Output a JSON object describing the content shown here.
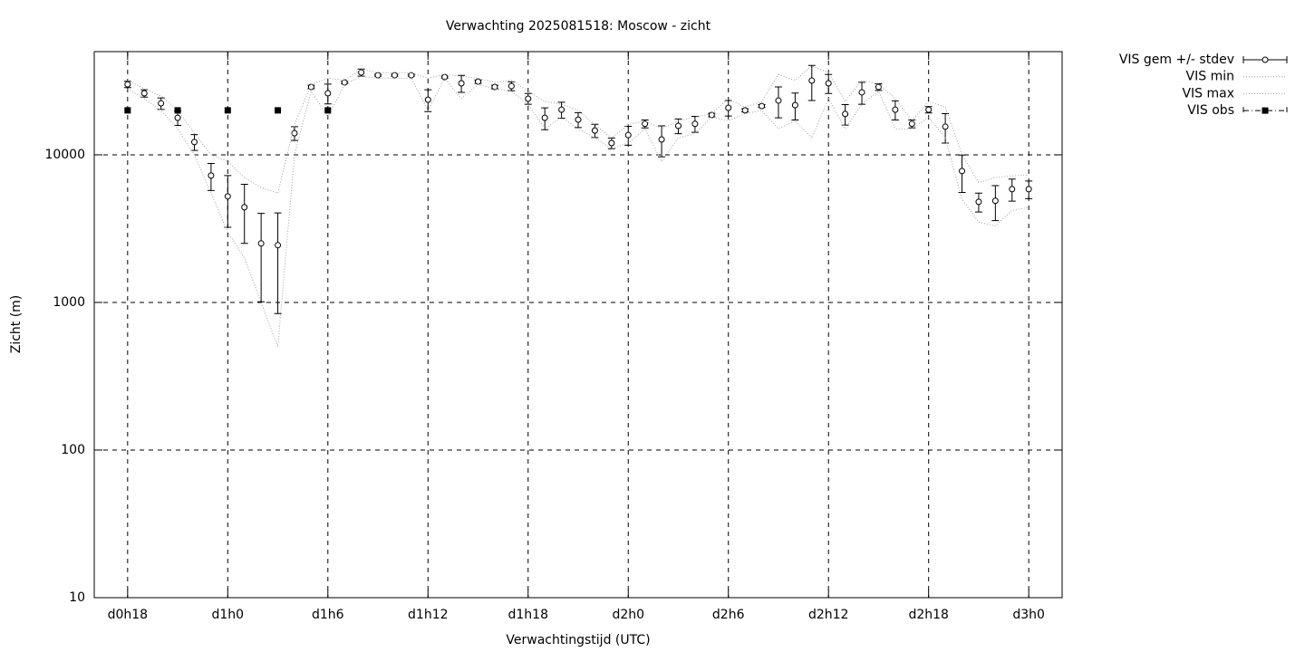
{
  "chart_data": {
    "type": "line",
    "title": "Verwachting 2025081518: Moscow - zicht",
    "x_label": "Verwachtingstijd (UTC)",
    "y_label": "Zicht (m)",
    "log_y": true,
    "grid": true,
    "legend": "top-right-outside",
    "xlim": [
      16,
      74
    ],
    "xticks": [
      {
        "value": 18,
        "label": "d0h18"
      },
      {
        "value": 24,
        "label": "d1h0"
      },
      {
        "value": 30,
        "label": "d1h6"
      },
      {
        "value": 36,
        "label": "d1h12"
      },
      {
        "value": 42,
        "label": "d1h18"
      },
      {
        "value": 48,
        "label": "d2h0"
      },
      {
        "value": 54,
        "label": "d2h6"
      },
      {
        "value": 60,
        "label": "d2h12"
      },
      {
        "value": 66,
        "label": "d2h18"
      },
      {
        "value": 72,
        "label": "d3h0"
      }
    ],
    "ylim": [
      10,
      50000
    ],
    "yticks": [
      10,
      100,
      1000,
      10000
    ],
    "x": [
      18,
      19,
      20,
      21,
      22,
      23,
      24,
      25,
      26,
      27,
      28,
      29,
      30,
      31,
      32,
      33,
      34,
      35,
      36,
      37,
      38,
      39,
      40,
      41,
      42,
      43,
      44,
      45,
      46,
      47,
      48,
      49,
      50,
      51,
      52,
      53,
      54,
      55,
      56,
      57,
      58,
      59,
      60,
      61,
      62,
      63,
      64,
      65,
      66,
      67,
      68,
      69,
      70,
      71,
      72
    ],
    "series": [
      {
        "name": "VIS gem +/- stdev",
        "color": "#000000",
        "style": "errorbar",
        "values": [
          30000,
          26100,
          22300,
          17800,
          12200,
          7230,
          5230,
          4410,
          2510,
          2440,
          14000,
          28800,
          26100,
          30900,
          36100,
          34600,
          34600,
          34600,
          23600,
          33600,
          30500,
          31300,
          28800,
          29200,
          24000,
          17800,
          20200,
          17300,
          14600,
          12000,
          13600,
          16200,
          12700,
          15700,
          16200,
          18600,
          20800,
          20000,
          21400,
          23300,
          21700,
          31800,
          30500,
          18900,
          26500,
          28800,
          20200,
          16200,
          20200,
          15500,
          7760,
          4800,
          4880,
          5850,
          5850
        ],
        "errors": [
          1500,
          1500,
          2000,
          2000,
          1500,
          1500,
          2000,
          1900,
          1500,
          1600,
          1500,
          800,
          4000,
          500,
          2000,
          500,
          500,
          500,
          4000,
          500,
          4000,
          800,
          800,
          2000,
          2000,
          3000,
          2500,
          2000,
          1500,
          1000,
          2000,
          1000,
          3000,
          1800,
          2000,
          500,
          2500,
          500,
          500,
          5500,
          4500,
          8500,
          4500,
          3000,
          4500,
          1500,
          3000,
          1000,
          1000,
          3500,
          2200,
          700,
          1300,
          1000,
          800
        ]
      },
      {
        "name": "VIS min",
        "color": "#a0a0a0",
        "style": "dotted",
        "values": [
          28000,
          24000,
          20000,
          15000,
          10000,
          5500,
          3000,
          2000,
          1000,
          500,
          10000,
          27000,
          18000,
          30000,
          34000,
          33000,
          33000,
          33000,
          20000,
          33000,
          24000,
          30000,
          28000,
          27000,
          22000,
          15000,
          18000,
          15000,
          13000,
          11000,
          12000,
          15000,
          9000,
          13000,
          14000,
          18000,
          17000,
          19000,
          20000,
          15000,
          17000,
          13000,
          24000,
          15000,
          22000,
          27000,
          15000,
          15000,
          18000,
          13000,
          5000,
          3500,
          3300,
          4200,
          4400
        ]
      },
      {
        "name": "VIS max",
        "color": "#a0a0a0",
        "style": "dotted",
        "values": [
          32000,
          28000,
          25000,
          20000,
          14000,
          10000,
          9000,
          7000,
          6000,
          5500,
          16000,
          30000,
          33000,
          32000,
          38000,
          36000,
          36000,
          36000,
          33000,
          35000,
          34000,
          33000,
          31000,
          32000,
          27000,
          23000,
          22000,
          20000,
          16000,
          13000,
          16000,
          17000,
          15000,
          17000,
          18000,
          19000,
          24000,
          21000,
          23000,
          35000,
          32000,
          40000,
          36000,
          23000,
          32000,
          30000,
          24000,
          17000,
          23000,
          21000,
          10000,
          6500,
          7000,
          7200,
          7300
        ]
      },
      {
        "name": "VIS obs",
        "color": "#000000",
        "style": "points",
        "x": [
          18,
          21,
          24,
          27,
          30
        ],
        "values": [
          20000,
          20000,
          20000,
          20000,
          20000
        ]
      }
    ]
  }
}
